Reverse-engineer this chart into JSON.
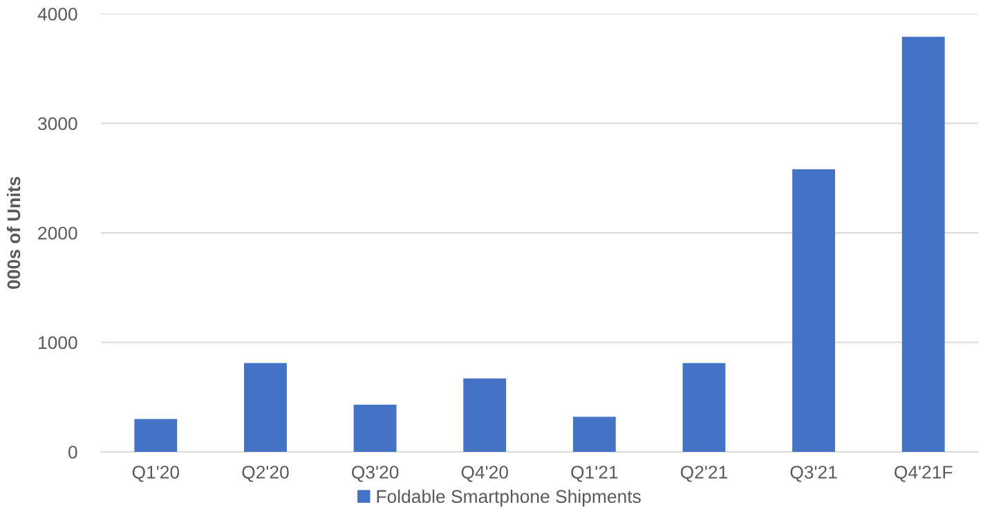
{
  "chart_data": {
    "type": "bar",
    "ylabel": "000s of Units",
    "categories": [
      "Q1'20",
      "Q2'20",
      "Q3'20",
      "Q4'20",
      "Q1'21",
      "Q2'21",
      "Q3'21",
      "Q4'21F"
    ],
    "series": [
      {
        "name": "Foldable Smartphone Shipments",
        "color": "#4472c4",
        "values": [
          300,
          810,
          430,
          670,
          320,
          810,
          2580,
          3790
        ]
      }
    ],
    "ylim": [
      0,
      4000
    ],
    "yticks": [
      0,
      1000,
      2000,
      3000,
      4000
    ],
    "grid": "y",
    "legend": "bottom"
  }
}
